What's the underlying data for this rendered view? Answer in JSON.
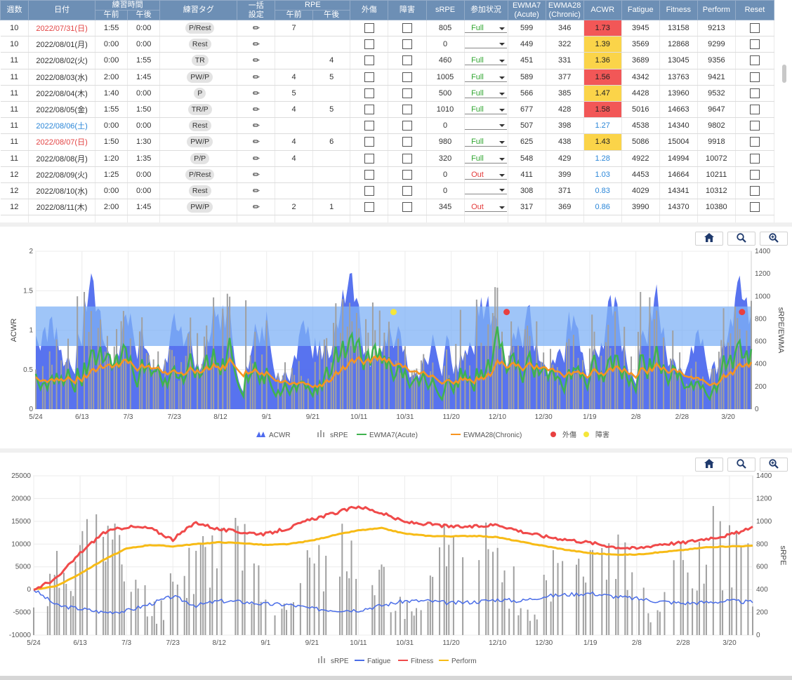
{
  "table": {
    "columns": [
      {
        "label": "週数",
        "width": 40
      },
      {
        "label": "日付",
        "width": 95
      },
      {
        "label": "練習時間",
        "sub": [
          "午前",
          "午後"
        ],
        "width": 92
      },
      {
        "label": "練習タグ",
        "width": 110
      },
      {
        "label": "一括\n設定",
        "width": 54
      },
      {
        "label": "RPE",
        "sub": [
          "午前",
          "午後"
        ],
        "width": 107
      },
      {
        "label": "外傷",
        "width": 54
      },
      {
        "label": "障害",
        "width": 54
      },
      {
        "label": "sRPE",
        "width": 54
      },
      {
        "label": "参加状況",
        "width": 62
      },
      {
        "label": "EWMA7\n(Acute)",
        "width": 54
      },
      {
        "label": "EWMA28\n(Chronic)",
        "width": 54
      },
      {
        "label": "ACWR",
        "width": 54
      },
      {
        "label": "Fatigue",
        "width": 54
      },
      {
        "label": "Fitness",
        "width": 54
      },
      {
        "label": "Perform",
        "width": 54
      },
      {
        "label": "Reset",
        "width": 55
      }
    ],
    "rows": [
      {
        "week": "10",
        "date": "2022/07/31(日)",
        "date_color": "red",
        "am_time": "1:55",
        "pm_time": "0:00",
        "tag": "P/Rest",
        "rpe_am": "7",
        "rpe_pm": "",
        "srpe": "805",
        "status": "Full",
        "ewma7": "599",
        "ewma28": "346",
        "acwr": "1.73",
        "acwr_level": "red",
        "fatigue": "3945",
        "fitness": "13158",
        "perform": "9213"
      },
      {
        "week": "10",
        "date": "2022/08/01(月)",
        "date_color": "",
        "am_time": "0:00",
        "pm_time": "0:00",
        "tag": "Rest",
        "rpe_am": "",
        "rpe_pm": "",
        "srpe": "0",
        "status": "",
        "ewma7": "449",
        "ewma28": "322",
        "acwr": "1.39",
        "acwr_level": "yellow",
        "fatigue": "3569",
        "fitness": "12868",
        "perform": "9299"
      },
      {
        "week": "11",
        "date": "2022/08/02(火)",
        "date_color": "",
        "am_time": "0:00",
        "pm_time": "1:55",
        "tag": "TR",
        "rpe_am": "",
        "rpe_pm": "4",
        "srpe": "460",
        "status": "Full",
        "ewma7": "451",
        "ewma28": "331",
        "acwr": "1.36",
        "acwr_level": "yellow",
        "fatigue": "3689",
        "fitness": "13045",
        "perform": "9356"
      },
      {
        "week": "11",
        "date": "2022/08/03(水)",
        "date_color": "",
        "am_time": "2:00",
        "pm_time": "1:45",
        "tag": "PW/P",
        "rpe_am": "4",
        "rpe_pm": "5",
        "srpe": "1005",
        "status": "Full",
        "ewma7": "589",
        "ewma28": "377",
        "acwr": "1.56",
        "acwr_level": "red",
        "fatigue": "4342",
        "fitness": "13763",
        "perform": "9421"
      },
      {
        "week": "11",
        "date": "2022/08/04(木)",
        "date_color": "",
        "am_time": "1:40",
        "pm_time": "0:00",
        "tag": "P",
        "rpe_am": "5",
        "rpe_pm": "",
        "srpe": "500",
        "status": "Full",
        "ewma7": "566",
        "ewma28": "385",
        "acwr": "1.47",
        "acwr_level": "yellow",
        "fatigue": "4428",
        "fitness": "13960",
        "perform": "9532"
      },
      {
        "week": "11",
        "date": "2022/08/05(金)",
        "date_color": "",
        "am_time": "1:55",
        "pm_time": "1:50",
        "tag": "TR/P",
        "rpe_am": "4",
        "rpe_pm": "5",
        "srpe": "1010",
        "status": "Full",
        "ewma7": "677",
        "ewma28": "428",
        "acwr": "1.58",
        "acwr_level": "red",
        "fatigue": "5016",
        "fitness": "14663",
        "perform": "9647"
      },
      {
        "week": "11",
        "date": "2022/08/06(土)",
        "date_color": "blue",
        "am_time": "0:00",
        "pm_time": "0:00",
        "tag": "Rest",
        "rpe_am": "",
        "rpe_pm": "",
        "srpe": "0",
        "status": "",
        "ewma7": "507",
        "ewma28": "398",
        "acwr": "1.27",
        "acwr_level": "blue",
        "fatigue": "4538",
        "fitness": "14340",
        "perform": "9802"
      },
      {
        "week": "11",
        "date": "2022/08/07(日)",
        "date_color": "red",
        "am_time": "1:50",
        "pm_time": "1:30",
        "tag": "PW/P",
        "rpe_am": "4",
        "rpe_pm": "6",
        "srpe": "980",
        "status": "Full",
        "ewma7": "625",
        "ewma28": "438",
        "acwr": "1.43",
        "acwr_level": "yellow",
        "fatigue": "5086",
        "fitness": "15004",
        "perform": "9918"
      },
      {
        "week": "11",
        "date": "2022/08/08(月)",
        "date_color": "",
        "am_time": "1:20",
        "pm_time": "1:35",
        "tag": "P/P",
        "rpe_am": "4",
        "rpe_pm": "",
        "srpe": "320",
        "status": "Full",
        "ewma7": "548",
        "ewma28": "429",
        "acwr": "1.28",
        "acwr_level": "blue",
        "fatigue": "4922",
        "fitness": "14994",
        "perform": "10072"
      },
      {
        "week": "12",
        "date": "2022/08/09(火)",
        "date_color": "",
        "am_time": "1:25",
        "pm_time": "0:00",
        "tag": "P/Rest",
        "rpe_am": "",
        "rpe_pm": "",
        "srpe": "0",
        "status": "Out",
        "ewma7": "411",
        "ewma28": "399",
        "acwr": "1.03",
        "acwr_level": "blue",
        "fatigue": "4453",
        "fitness": "14664",
        "perform": "10211"
      },
      {
        "week": "12",
        "date": "2022/08/10(水)",
        "date_color": "",
        "am_time": "0:00",
        "pm_time": "0:00",
        "tag": "Rest",
        "rpe_am": "",
        "rpe_pm": "",
        "srpe": "0",
        "status": "",
        "ewma7": "308",
        "ewma28": "371",
        "acwr": "0.83",
        "acwr_level": "blue",
        "fatigue": "4029",
        "fitness": "14341",
        "perform": "10312"
      },
      {
        "week": "12",
        "date": "2022/08/11(木)",
        "date_color": "",
        "am_time": "2:00",
        "pm_time": "1:45",
        "tag": "PW/P",
        "rpe_am": "2",
        "rpe_pm": "1",
        "srpe": "345",
        "status": "Out",
        "ewma7": "317",
        "ewma28": "369",
        "acwr": "0.86",
        "acwr_level": "blue",
        "fatigue": "3990",
        "fitness": "14370",
        "perform": "10380"
      }
    ]
  },
  "chart_data": [
    {
      "type": "area",
      "ylabel": "ACWR",
      "y2label": "sRPE/EWMA",
      "ylim": [
        0,
        2
      ],
      "y2lim": [
        0,
        1400
      ],
      "yticks": [
        "0",
        "0.5",
        "1",
        "1.5",
        "2"
      ],
      "y2ticks": [
        "0",
        "200",
        "400",
        "600",
        "800",
        "1000",
        "1200",
        "1400"
      ],
      "xticks": [
        "5/24",
        "6/13",
        "7/3",
        "7/23",
        "8/12",
        "9/1",
        "9/21",
        "10/11",
        "10/31",
        "11/20",
        "12/10",
        "12/30",
        "1/19",
        "2/8",
        "2/28",
        "3/20"
      ],
      "x_start": "2022-05-24",
      "days": 310,
      "band": [
        0.8,
        1.3
      ],
      "legend": [
        "ACWR",
        "sRPE",
        "EWMA7(Acute)",
        "EWMA28(Chronic)",
        "外傷",
        "障害"
      ],
      "legend_position": "bottom",
      "colors": {
        "acwr": "#4f6bee",
        "band": "#7fb2f5",
        "srpe": "#a0a0a0",
        "ewma7": "#3fb34f",
        "ewma28": "#f79420",
        "injury": "#e84040",
        "disorder": "#f5e63a"
      },
      "injury_markers": [
        {
          "date": "2022-12-14",
          "acwr": 1.23
        },
        {
          "date": "2023-03-26",
          "acwr": 1.23
        }
      ],
      "disorder_markers": [
        {
          "date": "2022-10-26",
          "acwr": 1.23
        }
      ]
    },
    {
      "type": "line",
      "ylabel": "",
      "y2label": "sRPE",
      "ylim": [
        -10000,
        25000
      ],
      "y2lim": [
        0,
        1400
      ],
      "yticks": [
        "-10000",
        "-5000",
        "0",
        "5000",
        "10000",
        "15000",
        "20000",
        "25000"
      ],
      "y2ticks": [
        "0",
        "200",
        "400",
        "600",
        "800",
        "1000",
        "1200",
        "1400"
      ],
      "xticks": [
        "5/24",
        "6/13",
        "7/3",
        "7/23",
        "8/12",
        "9/1",
        "9/21",
        "10/11",
        "10/31",
        "11/20",
        "12/10",
        "12/30",
        "1/19",
        "2/8",
        "2/28",
        "3/20"
      ],
      "legend": [
        "sRPE",
        "Fatigue",
        "Fitness",
        "Perform"
      ],
      "legend_position": "bottom",
      "colors": {
        "srpe": "#a0a0a0",
        "fatigue": "#4a6de8",
        "fitness": "#f04a4a",
        "perform": "#f7bb16"
      },
      "fitness_keypoints": [
        [
          0,
          0
        ],
        [
          10,
          2500
        ],
        [
          20,
          8000
        ],
        [
          30,
          12500
        ],
        [
          40,
          13800
        ],
        [
          50,
          13500
        ],
        [
          60,
          11000
        ],
        [
          70,
          14800
        ],
        [
          80,
          13200
        ],
        [
          90,
          12600
        ],
        [
          100,
          12200
        ],
        [
          110,
          13500
        ],
        [
          120,
          15500
        ],
        [
          130,
          16800
        ],
        [
          140,
          18300
        ],
        [
          150,
          16800
        ],
        [
          160,
          14800
        ],
        [
          170,
          14400
        ],
        [
          180,
          13800
        ],
        [
          190,
          13800
        ],
        [
          200,
          14300
        ],
        [
          210,
          12800
        ],
        [
          220,
          11700
        ],
        [
          230,
          11000
        ],
        [
          240,
          10300
        ],
        [
          250,
          9400
        ],
        [
          260,
          9000
        ],
        [
          270,
          10000
        ],
        [
          280,
          10300
        ],
        [
          290,
          11200
        ],
        [
          300,
          12000
        ],
        [
          310,
          13500
        ]
      ],
      "perform_keypoints": [
        [
          0,
          0
        ],
        [
          10,
          800
        ],
        [
          20,
          3500
        ],
        [
          30,
          6500
        ],
        [
          40,
          9000
        ],
        [
          50,
          9800
        ],
        [
          60,
          9500
        ],
        [
          70,
          10000
        ],
        [
          80,
          10400
        ],
        [
          90,
          10200
        ],
        [
          100,
          9800
        ],
        [
          110,
          10000
        ],
        [
          120,
          10800
        ],
        [
          130,
          12000
        ],
        [
          140,
          13000
        ],
        [
          150,
          13500
        ],
        [
          160,
          12300
        ],
        [
          170,
          11800
        ],
        [
          180,
          11700
        ],
        [
          190,
          11800
        ],
        [
          200,
          11500
        ],
        [
          210,
          10500
        ],
        [
          220,
          9600
        ],
        [
          230,
          8700
        ],
        [
          240,
          8000
        ],
        [
          250,
          7700
        ],
        [
          260,
          7700
        ],
        [
          270,
          8200
        ],
        [
          280,
          8700
        ],
        [
          290,
          9300
        ],
        [
          300,
          9500
        ],
        [
          310,
          9600
        ]
      ],
      "fatigue_keypoints": [
        [
          0,
          0
        ],
        [
          10,
          -3500
        ],
        [
          20,
          -4200
        ],
        [
          30,
          -5000
        ],
        [
          40,
          -4700
        ],
        [
          50,
          -3200
        ],
        [
          60,
          -1500
        ],
        [
          70,
          -3500
        ],
        [
          80,
          -2500
        ],
        [
          90,
          -2700
        ],
        [
          100,
          -3200
        ],
        [
          110,
          -3300
        ],
        [
          120,
          -4200
        ],
        [
          130,
          -4500
        ],
        [
          140,
          -4500
        ],
        [
          150,
          -3500
        ],
        [
          160,
          -2500
        ],
        [
          170,
          -2500
        ],
        [
          180,
          -3000
        ],
        [
          190,
          -2700
        ],
        [
          200,
          -2200
        ],
        [
          210,
          -2500
        ],
        [
          220,
          -1500
        ],
        [
          230,
          -1100
        ],
        [
          240,
          -800
        ],
        [
          250,
          -1500
        ],
        [
          260,
          -2000
        ],
        [
          270,
          -2600
        ],
        [
          280,
          -3000
        ],
        [
          290,
          -2800
        ],
        [
          300,
          -2500
        ],
        [
          310,
          -2800
        ]
      ]
    }
  ]
}
